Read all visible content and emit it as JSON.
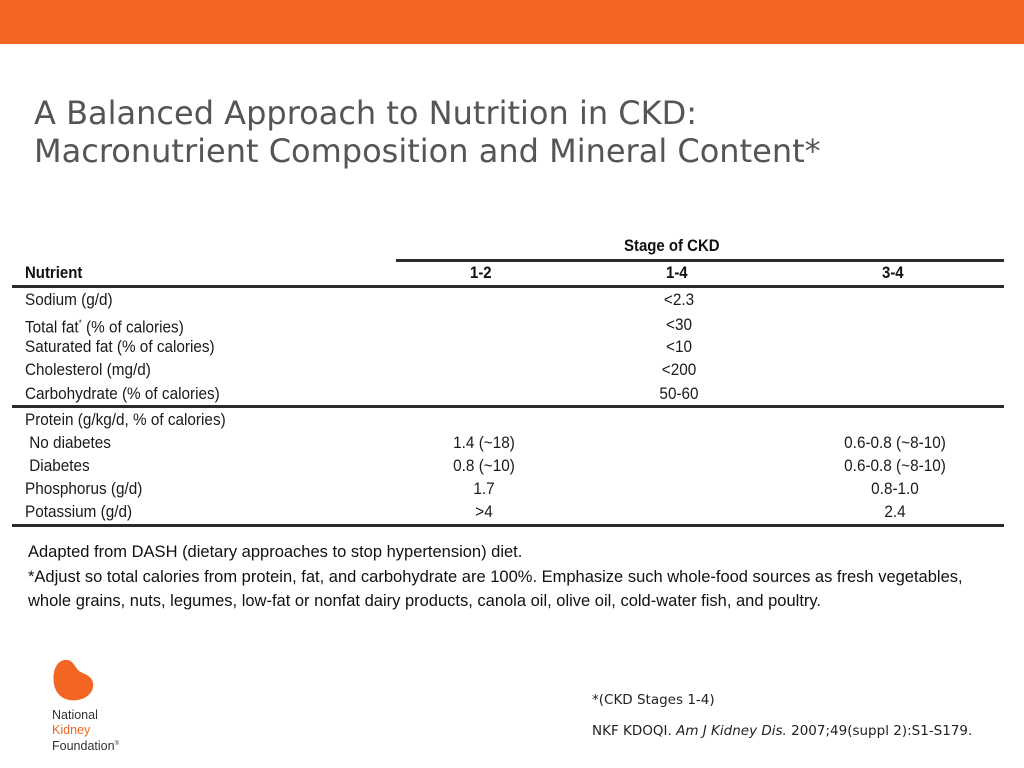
{
  "header": {
    "accent_color": "#f26522"
  },
  "title": {
    "line1": "A Balanced Approach to Nutrition in CKD:",
    "line2": "Macronutrient Composition and Mineral Content*"
  },
  "table": {
    "group_header": "Stage of CKD",
    "columns": [
      "Nutrient",
      "1-2",
      "1-4",
      "3-4"
    ],
    "rows_a": [
      {
        "nutrient": "Sodium (g/d)",
        "value": "<2.3"
      },
      {
        "nutrient_main": "Total fat",
        "nutrient_sup": "*",
        "nutrient_rest": " (% of calories)",
        "value": "<30"
      },
      {
        "nutrient": "Saturated fat (% of calories)",
        "value": "<10"
      },
      {
        "nutrient": "Cholesterol (mg/d)",
        "value": "<200"
      },
      {
        "nutrient": "Carbohydrate (% of calories)",
        "value": "50-60"
      }
    ],
    "rows_b": [
      {
        "nutrient": "Protein (g/kg/d, % of calories)",
        "col_12": "",
        "col_34": ""
      },
      {
        "nutrient": " No diabetes",
        "col_12": "1.4 (~18)",
        "col_34": "0.6-0.8 (~8-10)"
      },
      {
        "nutrient": " Diabetes",
        "col_12": "0.8 (~10)",
        "col_34": "0.6-0.8 (~8-10)"
      },
      {
        "nutrient": "Phosphorus (g/d)",
        "col_12": "1.7",
        "col_34": "0.8-1.0"
      },
      {
        "nutrient": "Potassium (g/d)",
        "col_12": ">4",
        "col_34": "2.4"
      }
    ]
  },
  "notes": {
    "line1": "Adapted from DASH (dietary approaches to stop hypertension) diet.",
    "line2": "*Adjust so total calories from protein, fat, and carbohydrate are 100%. Emphasize such whole-food sources as fresh vegetables, whole grains, nuts, legumes, low-fat or nonfat dairy products, canola oil, olive oil, cold-water fish, and poultry."
  },
  "logo": {
    "line1": "National",
    "line2": "Kidney",
    "line3": "Foundation",
    "mark": "®",
    "icon": "kidney-logo-icon",
    "color": "#f26522"
  },
  "footnote": "*(CKD Stages 1-4)",
  "citation": {
    "prefix": "NKF KDOQI. ",
    "journal": "Am J Kidney Dis.",
    "rest": " 2007;49(suppl 2):S1-S179."
  }
}
